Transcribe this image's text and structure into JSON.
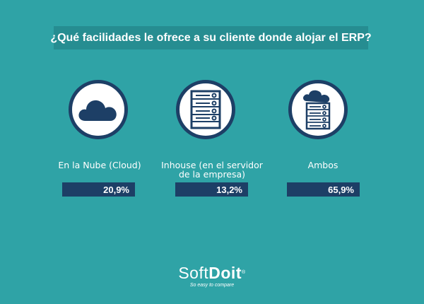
{
  "chart_data": {
    "type": "bar",
    "title": "¿Qué facilidades le ofrece a su cliente donde alojar el ERP?",
    "categories": [
      "En la Nube (Cloud)",
      "Inhouse (en el servidor de la empresa)",
      "Ambos"
    ],
    "category_lines": [
      [
        "En la Nube (Cloud)"
      ],
      [
        "Inhouse (en el servidor",
        "de la empresa)"
      ],
      [
        "Ambos"
      ]
    ],
    "values": [
      20.9,
      13.2,
      65.9
    ],
    "value_labels": [
      "20,9%",
      "13,2%",
      "65,9%"
    ],
    "icons": [
      "cloud-icon",
      "server-rack-icon",
      "cloud-server-icon"
    ]
  },
  "logo": {
    "soft": "Soft",
    "doit": "Doit",
    "registered": "®",
    "tagline": "So easy to compare"
  },
  "colors": {
    "background": "#2fa3a6",
    "title_box": "#268d91",
    "navy": "#1d3f66",
    "white": "#ffffff"
  }
}
